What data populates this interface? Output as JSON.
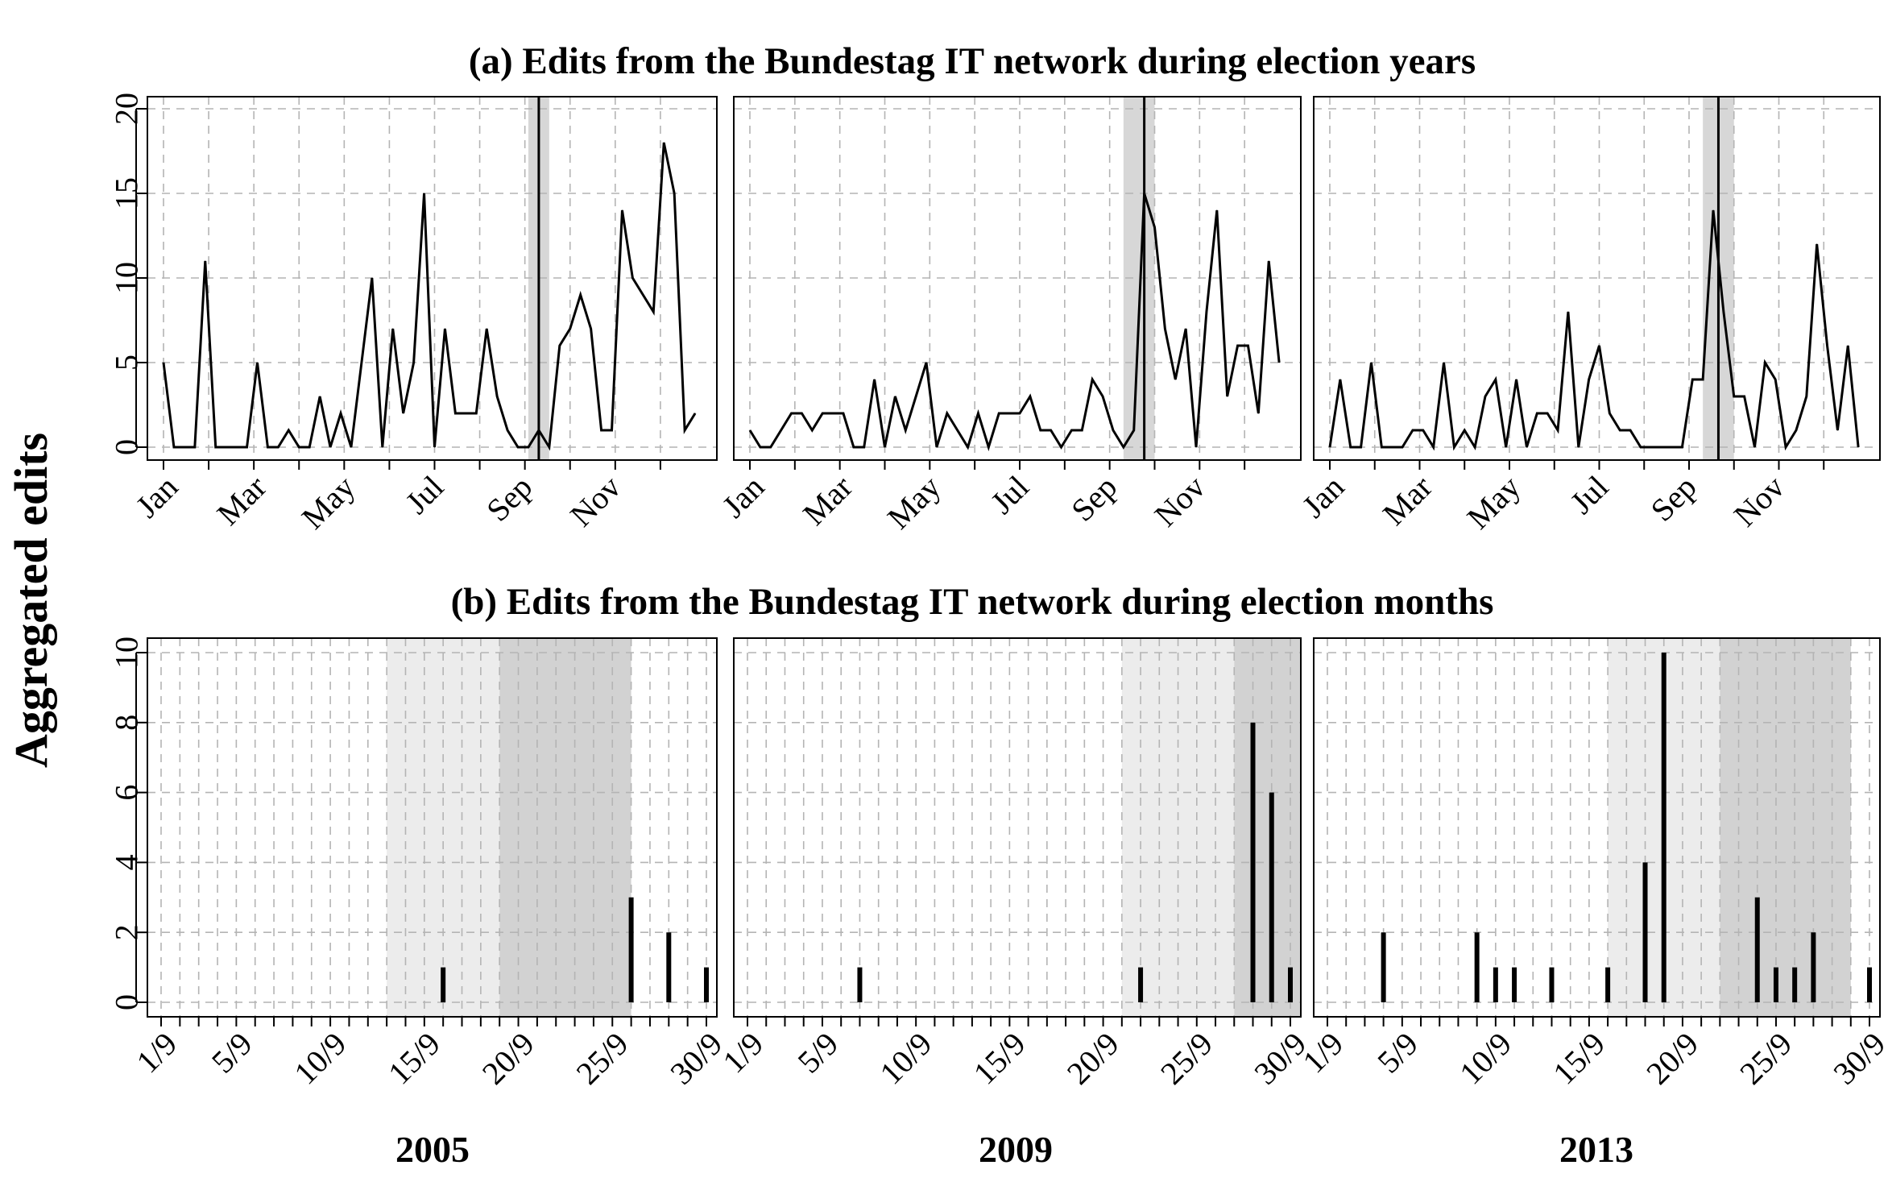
{
  "figure": {
    "ylabel": "Aggregated edits",
    "year_labels": [
      "2005",
      "2009",
      "2013"
    ]
  },
  "chart_data": [
    {
      "type": "line",
      "title": "(a) Edits from the Bundestag IT network during election years",
      "panel": "2005",
      "x_unit": "week of year",
      "xlim": [
        1,
        53
      ],
      "ylim": [
        0,
        20
      ],
      "y_ticks": [
        0,
        5,
        10,
        15,
        20
      ],
      "x_ticks": [
        {
          "label": "Jan",
          "x": 1
        },
        {
          "label": "Mar",
          "x": 9.5
        },
        {
          "label": "May",
          "x": 18
        },
        {
          "label": "Jul",
          "x": 26.5
        },
        {
          "label": "Sep",
          "x": 35
        },
        {
          "label": "Nov",
          "x": 43.5
        }
      ],
      "grid": true,
      "shaded_band": [
        36,
        38
      ],
      "election_line": 37,
      "values": [
        5,
        0,
        0,
        0,
        11,
        0,
        0,
        0,
        0,
        5,
        0,
        0,
        1,
        0,
        0,
        3,
        0,
        2,
        0,
        5,
        10,
        0,
        7,
        2,
        5,
        15,
        0,
        7,
        2,
        2,
        2,
        7,
        3,
        1,
        0,
        0,
        1,
        0,
        6,
        7,
        9,
        7,
        1,
        1,
        14,
        10,
        9,
        8,
        18,
        15,
        1,
        2
      ]
    },
    {
      "type": "line",
      "title": "",
      "panel": "2009",
      "x_unit": "week of year",
      "xlim": [
        1,
        53
      ],
      "ylim": [
        0,
        20
      ],
      "y_ticks": [
        0,
        5,
        10,
        15,
        20
      ],
      "x_ticks": [
        {
          "label": "Jan",
          "x": 1
        },
        {
          "label": "Mar",
          "x": 9.5
        },
        {
          "label": "May",
          "x": 18
        },
        {
          "label": "Jul",
          "x": 26.5
        },
        {
          "label": "Sep",
          "x": 35
        },
        {
          "label": "Nov",
          "x": 43.5
        }
      ],
      "grid": true,
      "shaded_band": [
        37,
        40
      ],
      "election_line": 39,
      "values": [
        1,
        0,
        0,
        1,
        2,
        2,
        1,
        2,
        2,
        2,
        0,
        0,
        4,
        0,
        3,
        1,
        3,
        5,
        0,
        2,
        1,
        0,
        2,
        0,
        2,
        2,
        2,
        3,
        1,
        1,
        0,
        1,
        1,
        4,
        3,
        1,
        0,
        1,
        15,
        13,
        7,
        4,
        7,
        0,
        8,
        14,
        3,
        6,
        6,
        2,
        11,
        5
      ]
    },
    {
      "type": "line",
      "title": "",
      "panel": "2013",
      "x_unit": "week of year",
      "xlim": [
        1,
        53
      ],
      "ylim": [
        0,
        20
      ],
      "y_ticks": [
        0,
        5,
        10,
        15,
        20
      ],
      "x_ticks": [
        {
          "label": "Jan",
          "x": 1
        },
        {
          "label": "Mar",
          "x": 9.5
        },
        {
          "label": "May",
          "x": 18
        },
        {
          "label": "Jul",
          "x": 26.5
        },
        {
          "label": "Sep",
          "x": 35
        },
        {
          "label": "Nov",
          "x": 43.5
        }
      ],
      "grid": true,
      "shaded_band": [
        37,
        40
      ],
      "election_line": 38.5,
      "values": [
        0,
        4,
        0,
        0,
        5,
        0,
        0,
        0,
        1,
        1,
        0,
        5,
        0,
        1,
        0,
        3,
        4,
        0,
        4,
        0,
        2,
        2,
        1,
        8,
        0,
        4,
        6,
        2,
        1,
        1,
        0,
        0,
        0,
        0,
        0,
        4,
        4,
        14,
        8,
        3,
        3,
        0,
        5,
        4,
        0,
        1,
        3,
        12,
        6,
        1,
        6,
        0
      ]
    },
    {
      "type": "bar",
      "title": "(b) Edits from the Bundestag IT network during election months",
      "panel": "2005",
      "x_unit": "day of September",
      "xlim": [
        1,
        30
      ],
      "ylim": [
        0,
        10
      ],
      "y_ticks": [
        0,
        2,
        4,
        6,
        8,
        10
      ],
      "x_ticks": [
        "1/9",
        "5/9",
        "10/9",
        "15/9",
        "20/9",
        "25/9",
        "30/9"
      ],
      "grid": true,
      "shaded_light": [
        13,
        19
      ],
      "shaded_dark": [
        19,
        26
      ],
      "days": [
        16,
        26,
        28,
        30
      ],
      "values": [
        1,
        3,
        2,
        1
      ]
    },
    {
      "type": "bar",
      "title": "",
      "panel": "2009",
      "x_unit": "day of September",
      "xlim": [
        1,
        30
      ],
      "ylim": [
        0,
        10
      ],
      "y_ticks": [
        0,
        2,
        4,
        6,
        8,
        10
      ],
      "x_ticks": [
        "1/9",
        "5/9",
        "10/9",
        "15/9",
        "20/9",
        "25/9",
        "30/9"
      ],
      "grid": true,
      "shaded_light": [
        21,
        27
      ],
      "shaded_dark": [
        27,
        31
      ],
      "days": [
        7,
        22,
        28,
        29,
        30
      ],
      "values": [
        1,
        1,
        8,
        6,
        1
      ]
    },
    {
      "type": "bar",
      "title": "",
      "panel": "2013",
      "x_unit": "day of September",
      "xlim": [
        1,
        30
      ],
      "ylim": [
        0,
        10
      ],
      "y_ticks": [
        0,
        2,
        4,
        6,
        8,
        10
      ],
      "x_ticks": [
        "1/9",
        "5/9",
        "10/9",
        "15/9",
        "20/9",
        "25/9",
        "30/9"
      ],
      "grid": true,
      "shaded_light": [
        16,
        22
      ],
      "shaded_dark": [
        22,
        29
      ],
      "days": [
        4,
        9,
        10,
        11,
        13,
        16,
        18,
        19,
        24,
        25,
        26,
        27,
        30
      ],
      "values": [
        2,
        2,
        1,
        1,
        1,
        1,
        4,
        10,
        3,
        1,
        1,
        2,
        1
      ]
    }
  ]
}
